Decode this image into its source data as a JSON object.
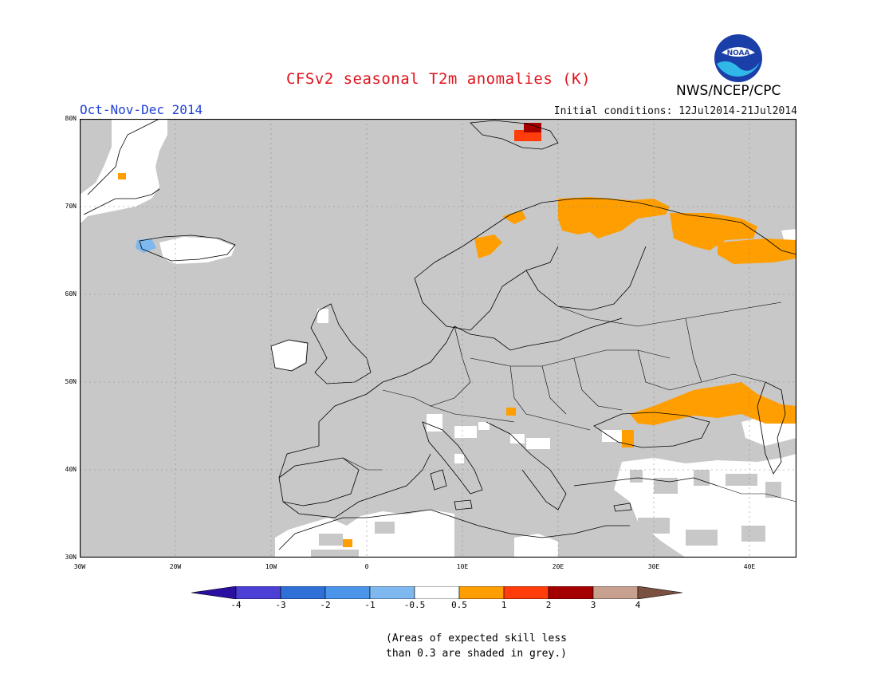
{
  "header": {
    "title": "CFSv2 seasonal T2m anomalies (K)",
    "season": "Oct-Nov-Dec 2014",
    "initial_conditions": "Initial conditions: 12Jul2014-21Jul2014",
    "agency": "NWS/NCEP/CPC",
    "logo_text": "NOAA"
  },
  "map": {
    "region": "Europe",
    "lat_labels": [
      "80N",
      "70N",
      "60N",
      "50N",
      "40N",
      "30N"
    ],
    "lon_labels": [
      "30W",
      "20W",
      "10W",
      "0",
      "10E",
      "20E",
      "30E",
      "40E"
    ],
    "background_color": "#c8c8c8",
    "land_line_color": "#000000"
  },
  "legend": {
    "labels": [
      "-4",
      "-3",
      "-2",
      "-1",
      "-0.5",
      "0.5",
      "1",
      "2",
      "3",
      "4"
    ],
    "colors": [
      "#2a0fa0",
      "#4b3fd6",
      "#2f6fd8",
      "#4a95ea",
      "#7fb8ef",
      "#ffffff",
      "#ff9e00",
      "#ff3c0a",
      "#a50000",
      "#c8a090",
      "#7a5040"
    ]
  },
  "footnote": {
    "line1": "(Areas of expected skill less",
    "line2": "than 0.3 are shaded in grey.)"
  }
}
